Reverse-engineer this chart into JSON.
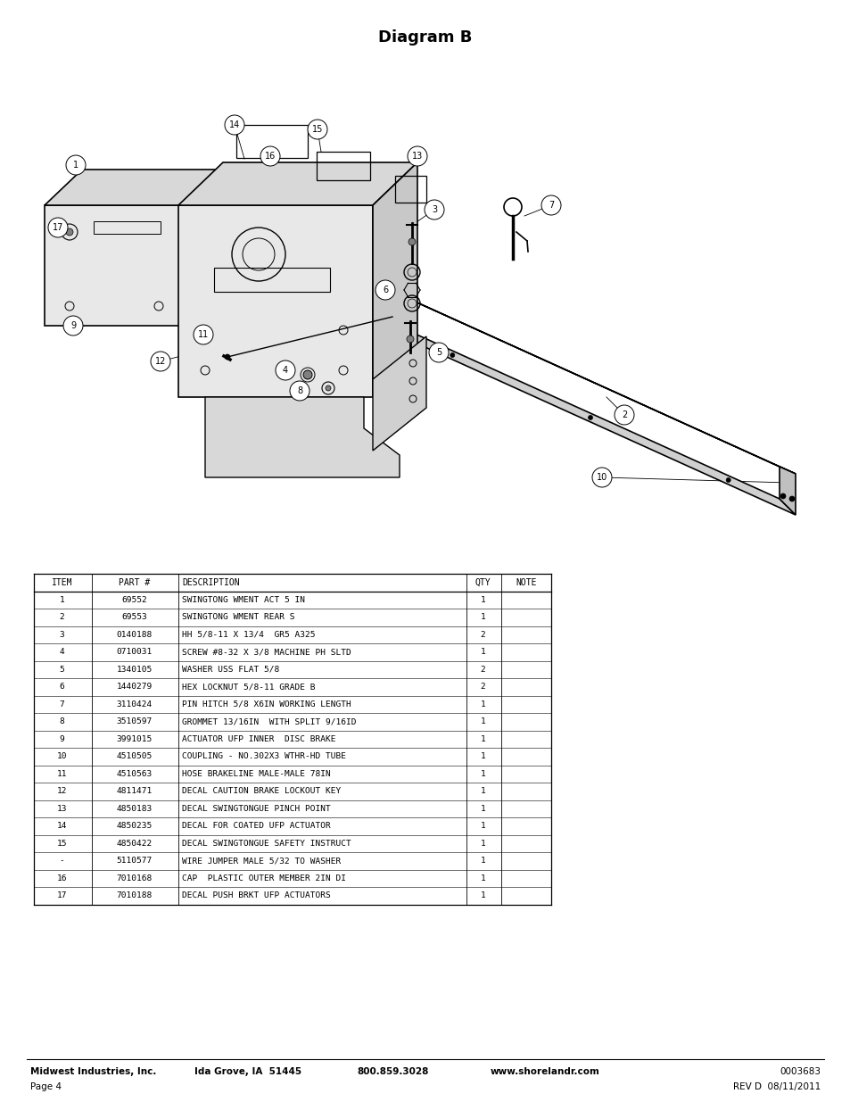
{
  "title": "Diagram B",
  "title_fontsize": 13,
  "table_header": [
    "ITEM",
    "PART #",
    "DESCRIPTION",
    "QTY",
    "NOTE"
  ],
  "table_rows": [
    [
      "1",
      "69552",
      "SWINGTONG WMENT ACT 5 IN",
      "1",
      ""
    ],
    [
      "2",
      "69553",
      "SWINGTONG WMENT REAR S",
      "1",
      ""
    ],
    [
      "3",
      "0140188",
      "HH 5/8-11 X 13/4  GR5 A325",
      "2",
      ""
    ],
    [
      "4",
      "0710031",
      "SCREW #8-32 X 3/8 MACHINE PH SLTD",
      "1",
      ""
    ],
    [
      "5",
      "1340105",
      "WASHER USS FLAT 5/8",
      "2",
      ""
    ],
    [
      "6",
      "1440279",
      "HEX LOCKNUT 5/8-11 GRADE B",
      "2",
      ""
    ],
    [
      "7",
      "3110424",
      "PIN HITCH 5/8 X6IN WORKING LENGTH",
      "1",
      ""
    ],
    [
      "8",
      "3510597",
      "GROMMET 13/16IN  WITH SPLIT 9/16ID",
      "1",
      ""
    ],
    [
      "9",
      "3991015",
      "ACTUATOR UFP INNER  DISC BRAKE",
      "1",
      ""
    ],
    [
      "10",
      "4510505",
      "COUPLING - NO.302X3 WTHR-HD TUBE",
      "1",
      ""
    ],
    [
      "11",
      "4510563",
      "HOSE BRAKELINE MALE-MALE 78IN",
      "1",
      ""
    ],
    [
      "12",
      "4811471",
      "DECAL CAUTION BRAKE LOCKOUT KEY",
      "1",
      ""
    ],
    [
      "13",
      "4850183",
      "DECAL SWINGTONGUE PINCH POINT",
      "1",
      ""
    ],
    [
      "14",
      "4850235",
      "DECAL FOR COATED UFP ACTUATOR",
      "1",
      ""
    ],
    [
      "15",
      "4850422",
      "DECAL SWINGTONGUE SAFETY INSTRUCT",
      "1",
      ""
    ],
    [
      "-",
      "5110577",
      "WIRE JUMPER MALE 5/32 TO WASHER",
      "1",
      ""
    ],
    [
      "16",
      "7010168",
      "CAP  PLASTIC OUTER MEMBER 2IN DI",
      "1",
      ""
    ],
    [
      "17",
      "7010188",
      "DECAL PUSH BRKT UFP ACTUATORS",
      "1",
      ""
    ]
  ],
  "table_font": "monospace",
  "table_fontsize": 7.0,
  "background_color": "#ffffff",
  "text_color": "#000000"
}
